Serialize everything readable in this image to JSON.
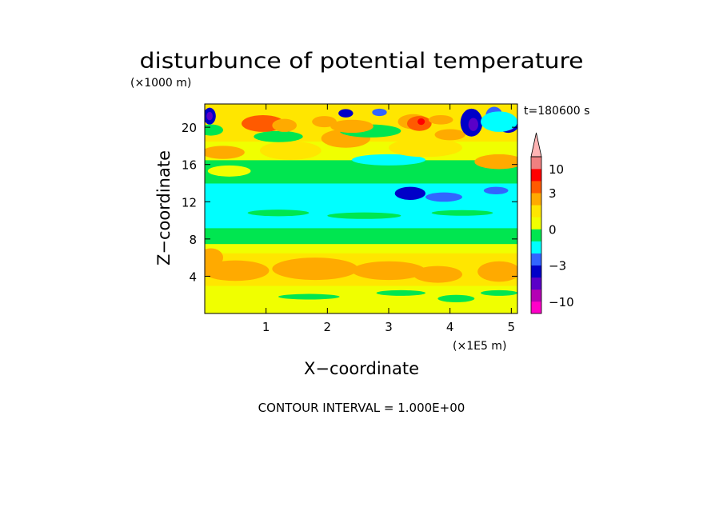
{
  "chart_data": {
    "type": "heatmap",
    "title": "disturbunce of potential temperature",
    "time_label": "t=180600 s",
    "xlabel": "X−coordinate",
    "ylabel": "Z−coordinate",
    "x_unit": "(×1E5 m)",
    "y_unit": "(×1000 m)",
    "footer": "CONTOUR INTERVAL = 1.000E+00",
    "xlim": [
      0,
      5.1
    ],
    "ylim": [
      0,
      22.5
    ],
    "x_ticks": [
      1,
      2,
      3,
      4,
      5
    ],
    "y_ticks": [
      4,
      8,
      12,
      16,
      20
    ],
    "colorbar": {
      "labels": [
        {
          "value": 10,
          "text": "10"
        },
        {
          "value": 3,
          "text": "3"
        },
        {
          "value": 0,
          "text": "0"
        },
        {
          "value": -3,
          "text": "−3"
        },
        {
          "value": -10,
          "text": "−10"
        }
      ],
      "levels": [
        {
          "from": -20,
          "to": -10,
          "color": "#ff00c8"
        },
        {
          "from": -10,
          "to": -7,
          "color": "#b400b4"
        },
        {
          "from": -7,
          "to": -5,
          "color": "#5a00c8"
        },
        {
          "from": -5,
          "to": -3,
          "color": "#0000c8"
        },
        {
          "from": -3,
          "to": -2,
          "color": "#3264ff"
        },
        {
          "from": -2,
          "to": -1,
          "color": "#00ffff"
        },
        {
          "from": -1,
          "to": 0,
          "color": "#00e650"
        },
        {
          "from": 0,
          "to": 1,
          "color": "#f0ff00"
        },
        {
          "from": 1,
          "to": 2,
          "color": "#ffe600"
        },
        {
          "from": 2,
          "to": 3,
          "color": "#ffaa00"
        },
        {
          "from": 3,
          "to": 5,
          "color": "#ff5a00"
        },
        {
          "from": 5,
          "to": 10,
          "color": "#ff0000"
        },
        {
          "from": 10,
          "to": 20,
          "color": "#f08080"
        },
        {
          "from": 20,
          "to": 30,
          "color": "#ffb4b4"
        }
      ]
    },
    "bands": [
      {
        "z0": 0,
        "z1": 1.0,
        "value": 0.5
      },
      {
        "z0": 1.0,
        "z1": 2.2,
        "value": 0.5
      },
      {
        "z0": 2.2,
        "z1": 3.0,
        "value": 0.5
      },
      {
        "z0": 3.0,
        "z1": 6.5,
        "value": 1.5
      },
      {
        "z0": 6.5,
        "z1": 7.5,
        "value": 0.5
      },
      {
        "z0": 7.5,
        "z1": 9.2,
        "value": -0.5
      },
      {
        "z0": 9.2,
        "z1": 14.0,
        "value": -1.5
      },
      {
        "z0": 14.0,
        "z1": 16.5,
        "value": -0.5
      },
      {
        "z0": 16.5,
        "z1": 18.5,
        "value": 0.5
      },
      {
        "z0": 18.5,
        "z1": 22.5,
        "value": 1.5
      }
    ],
    "blobs": [
      {
        "x": 0.5,
        "z": 4.6,
        "rx": 0.55,
        "rz": 1.1,
        "value": 2.5
      },
      {
        "x": 1.8,
        "z": 4.8,
        "rx": 0.7,
        "rz": 1.2,
        "value": 2.5
      },
      {
        "x": 3.0,
        "z": 4.6,
        "rx": 0.6,
        "rz": 1.0,
        "value": 2.5
      },
      {
        "x": 3.8,
        "z": 4.2,
        "rx": 0.4,
        "rz": 0.9,
        "value": 2.5
      },
      {
        "x": 4.8,
        "z": 4.5,
        "rx": 0.35,
        "rz": 1.1,
        "value": 2.5
      },
      {
        "x": 0.1,
        "z": 6.0,
        "rx": 0.2,
        "rz": 1.0,
        "value": 2.5
      },
      {
        "x": 1.7,
        "z": 1.8,
        "rx": 0.5,
        "rz": 0.3,
        "value": -0.5
      },
      {
        "x": 3.2,
        "z": 2.2,
        "rx": 0.4,
        "rz": 0.3,
        "value": -0.5
      },
      {
        "x": 4.1,
        "z": 1.6,
        "rx": 0.3,
        "rz": 0.4,
        "value": -0.5
      },
      {
        "x": 4.8,
        "z": 2.2,
        "rx": 0.3,
        "rz": 0.3,
        "value": -0.5
      },
      {
        "x": 1.2,
        "z": 10.8,
        "rx": 0.5,
        "rz": 0.35,
        "value": -0.5
      },
      {
        "x": 2.6,
        "z": 10.5,
        "rx": 0.6,
        "rz": 0.35,
        "value": -0.5
      },
      {
        "x": 4.2,
        "z": 10.8,
        "rx": 0.5,
        "rz": 0.3,
        "value": -0.5
      },
      {
        "x": 3.35,
        "z": 12.9,
        "rx": 0.25,
        "rz": 0.7,
        "value": -4
      },
      {
        "x": 3.9,
        "z": 12.5,
        "rx": 0.3,
        "rz": 0.5,
        "value": -2.5
      },
      {
        "x": 4.75,
        "z": 13.2,
        "rx": 0.2,
        "rz": 0.4,
        "value": -2.5
      },
      {
        "x": 3.0,
        "z": 16.5,
        "rx": 0.6,
        "rz": 0.6,
        "value": -1.5
      },
      {
        "x": 0.4,
        "z": 15.3,
        "rx": 0.35,
        "rz": 0.6,
        "value": 0.5
      },
      {
        "x": 0.3,
        "z": 17.3,
        "rx": 0.35,
        "rz": 0.7,
        "value": 2.5
      },
      {
        "x": 1.4,
        "z": 17.5,
        "rx": 0.5,
        "rz": 1.0,
        "value": 1.5
      },
      {
        "x": 2.3,
        "z": 18.8,
        "rx": 0.4,
        "rz": 1.0,
        "value": 2.5
      },
      {
        "x": 3.6,
        "z": 17.8,
        "rx": 0.6,
        "rz": 1.0,
        "value": 1.5
      },
      {
        "x": 4.8,
        "z": 16.3,
        "rx": 0.4,
        "rz": 0.8,
        "value": 2.5
      },
      {
        "x": 0.1,
        "z": 19.7,
        "rx": 0.2,
        "rz": 0.6,
        "value": -0.5
      },
      {
        "x": 1.2,
        "z": 19.0,
        "rx": 0.4,
        "rz": 0.6,
        "value": -0.5
      },
      {
        "x": 2.7,
        "z": 19.6,
        "rx": 0.5,
        "rz": 0.7,
        "value": -0.5
      },
      {
        "x": 0.95,
        "z": 20.4,
        "rx": 0.35,
        "rz": 0.9,
        "value": 3.5
      },
      {
        "x": 1.3,
        "z": 20.2,
        "rx": 0.2,
        "rz": 0.7,
        "value": 2.5
      },
      {
        "x": 1.95,
        "z": 20.6,
        "rx": 0.2,
        "rz": 0.6,
        "value": 2.5
      },
      {
        "x": 2.4,
        "z": 20.1,
        "rx": 0.35,
        "rz": 0.7,
        "value": 2.5
      },
      {
        "x": 3.4,
        "z": 20.6,
        "rx": 0.25,
        "rz": 0.8,
        "value": 2.5
      },
      {
        "x": 3.5,
        "z": 20.4,
        "rx": 0.2,
        "rz": 0.8,
        "value": 3.5
      },
      {
        "x": 3.53,
        "z": 20.6,
        "rx": 0.06,
        "rz": 0.35,
        "value": 6
      },
      {
        "x": 3.85,
        "z": 20.8,
        "rx": 0.2,
        "rz": 0.5,
        "value": 2.5
      },
      {
        "x": 4.0,
        "z": 19.2,
        "rx": 0.25,
        "rz": 0.6,
        "value": 2.5
      },
      {
        "x": 0.08,
        "z": 21.2,
        "rx": 0.1,
        "rz": 0.9,
        "value": -4
      },
      {
        "x": 0.08,
        "z": 21.2,
        "rx": 0.05,
        "rz": 0.45,
        "value": -6
      },
      {
        "x": 2.3,
        "z": 21.5,
        "rx": 0.12,
        "rz": 0.45,
        "value": -4
      },
      {
        "x": 2.85,
        "z": 21.6,
        "rx": 0.12,
        "rz": 0.4,
        "value": -2.5
      },
      {
        "x": 4.35,
        "z": 20.5,
        "rx": 0.18,
        "rz": 1.5,
        "value": -4
      },
      {
        "x": 4.38,
        "z": 20.3,
        "rx": 0.08,
        "rz": 0.7,
        "value": -6
      },
      {
        "x": 4.72,
        "z": 21.2,
        "rx": 0.14,
        "rz": 1.0,
        "value": -2.5
      },
      {
        "x": 4.95,
        "z": 20.3,
        "rx": 0.17,
        "rz": 0.9,
        "value": -4
      },
      {
        "x": 4.95,
        "z": 20.2,
        "rx": 0.1,
        "rz": 0.55,
        "value": -8
      },
      {
        "x": 4.8,
        "z": 20.6,
        "rx": 0.3,
        "rz": 1.1,
        "value": -1.5
      }
    ]
  }
}
